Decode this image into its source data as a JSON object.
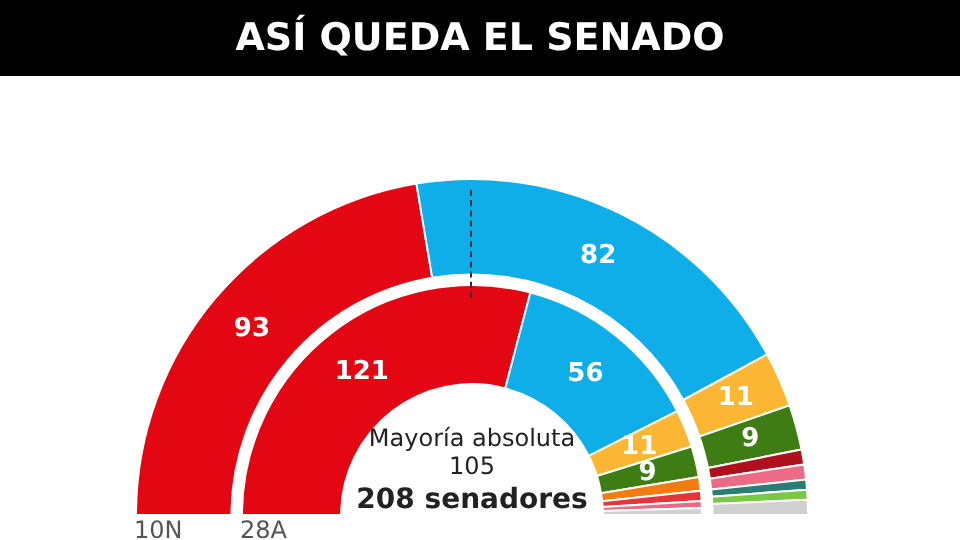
{
  "chart_data": [
    {
      "type": "donut",
      "title": "ASÍ QUEDA EL SENADO",
      "categories": [
        null,
        null,
        null,
        null,
        null,
        null,
        null,
        null,
        null
      ],
      "series": [
        {
          "name": "10N",
          "values": [
            93,
            82,
            11,
            9,
            3,
            3,
            2,
            2,
            3
          ],
          "value_labels": [
            "93",
            "82",
            "11",
            "9",
            null,
            null,
            null,
            null,
            null
          ]
        }
      ],
      "colors": [
        "#e30613",
        "#10aee8",
        "#fbb734",
        "#3e7d13",
        "#b0101e",
        "#ec6a86",
        "#2a7d72",
        "#7ac943",
        "#d0d0d0"
      ]
    },
    {
      "type": "donut",
      "categories": [
        null,
        null,
        null,
        null,
        null,
        null,
        null,
        null
      ],
      "series": [
        {
          "name": "28A",
          "values": [
            121,
            56,
            11,
            9,
            4,
            3,
            2,
            2
          ],
          "value_labels": [
            "121",
            "56",
            "11",
            "9",
            null,
            null,
            null,
            null
          ]
        }
      ],
      "colors": [
        "#e30613",
        "#10aee8",
        "#fbb734",
        "#3e7d13",
        "#f07c12",
        "#e5343a",
        "#ec6a86",
        "#d0d0d0"
      ],
      "annotations": [
        "Mayoría absoluta\n105",
        "208 senadores"
      ]
    }
  ]
}
